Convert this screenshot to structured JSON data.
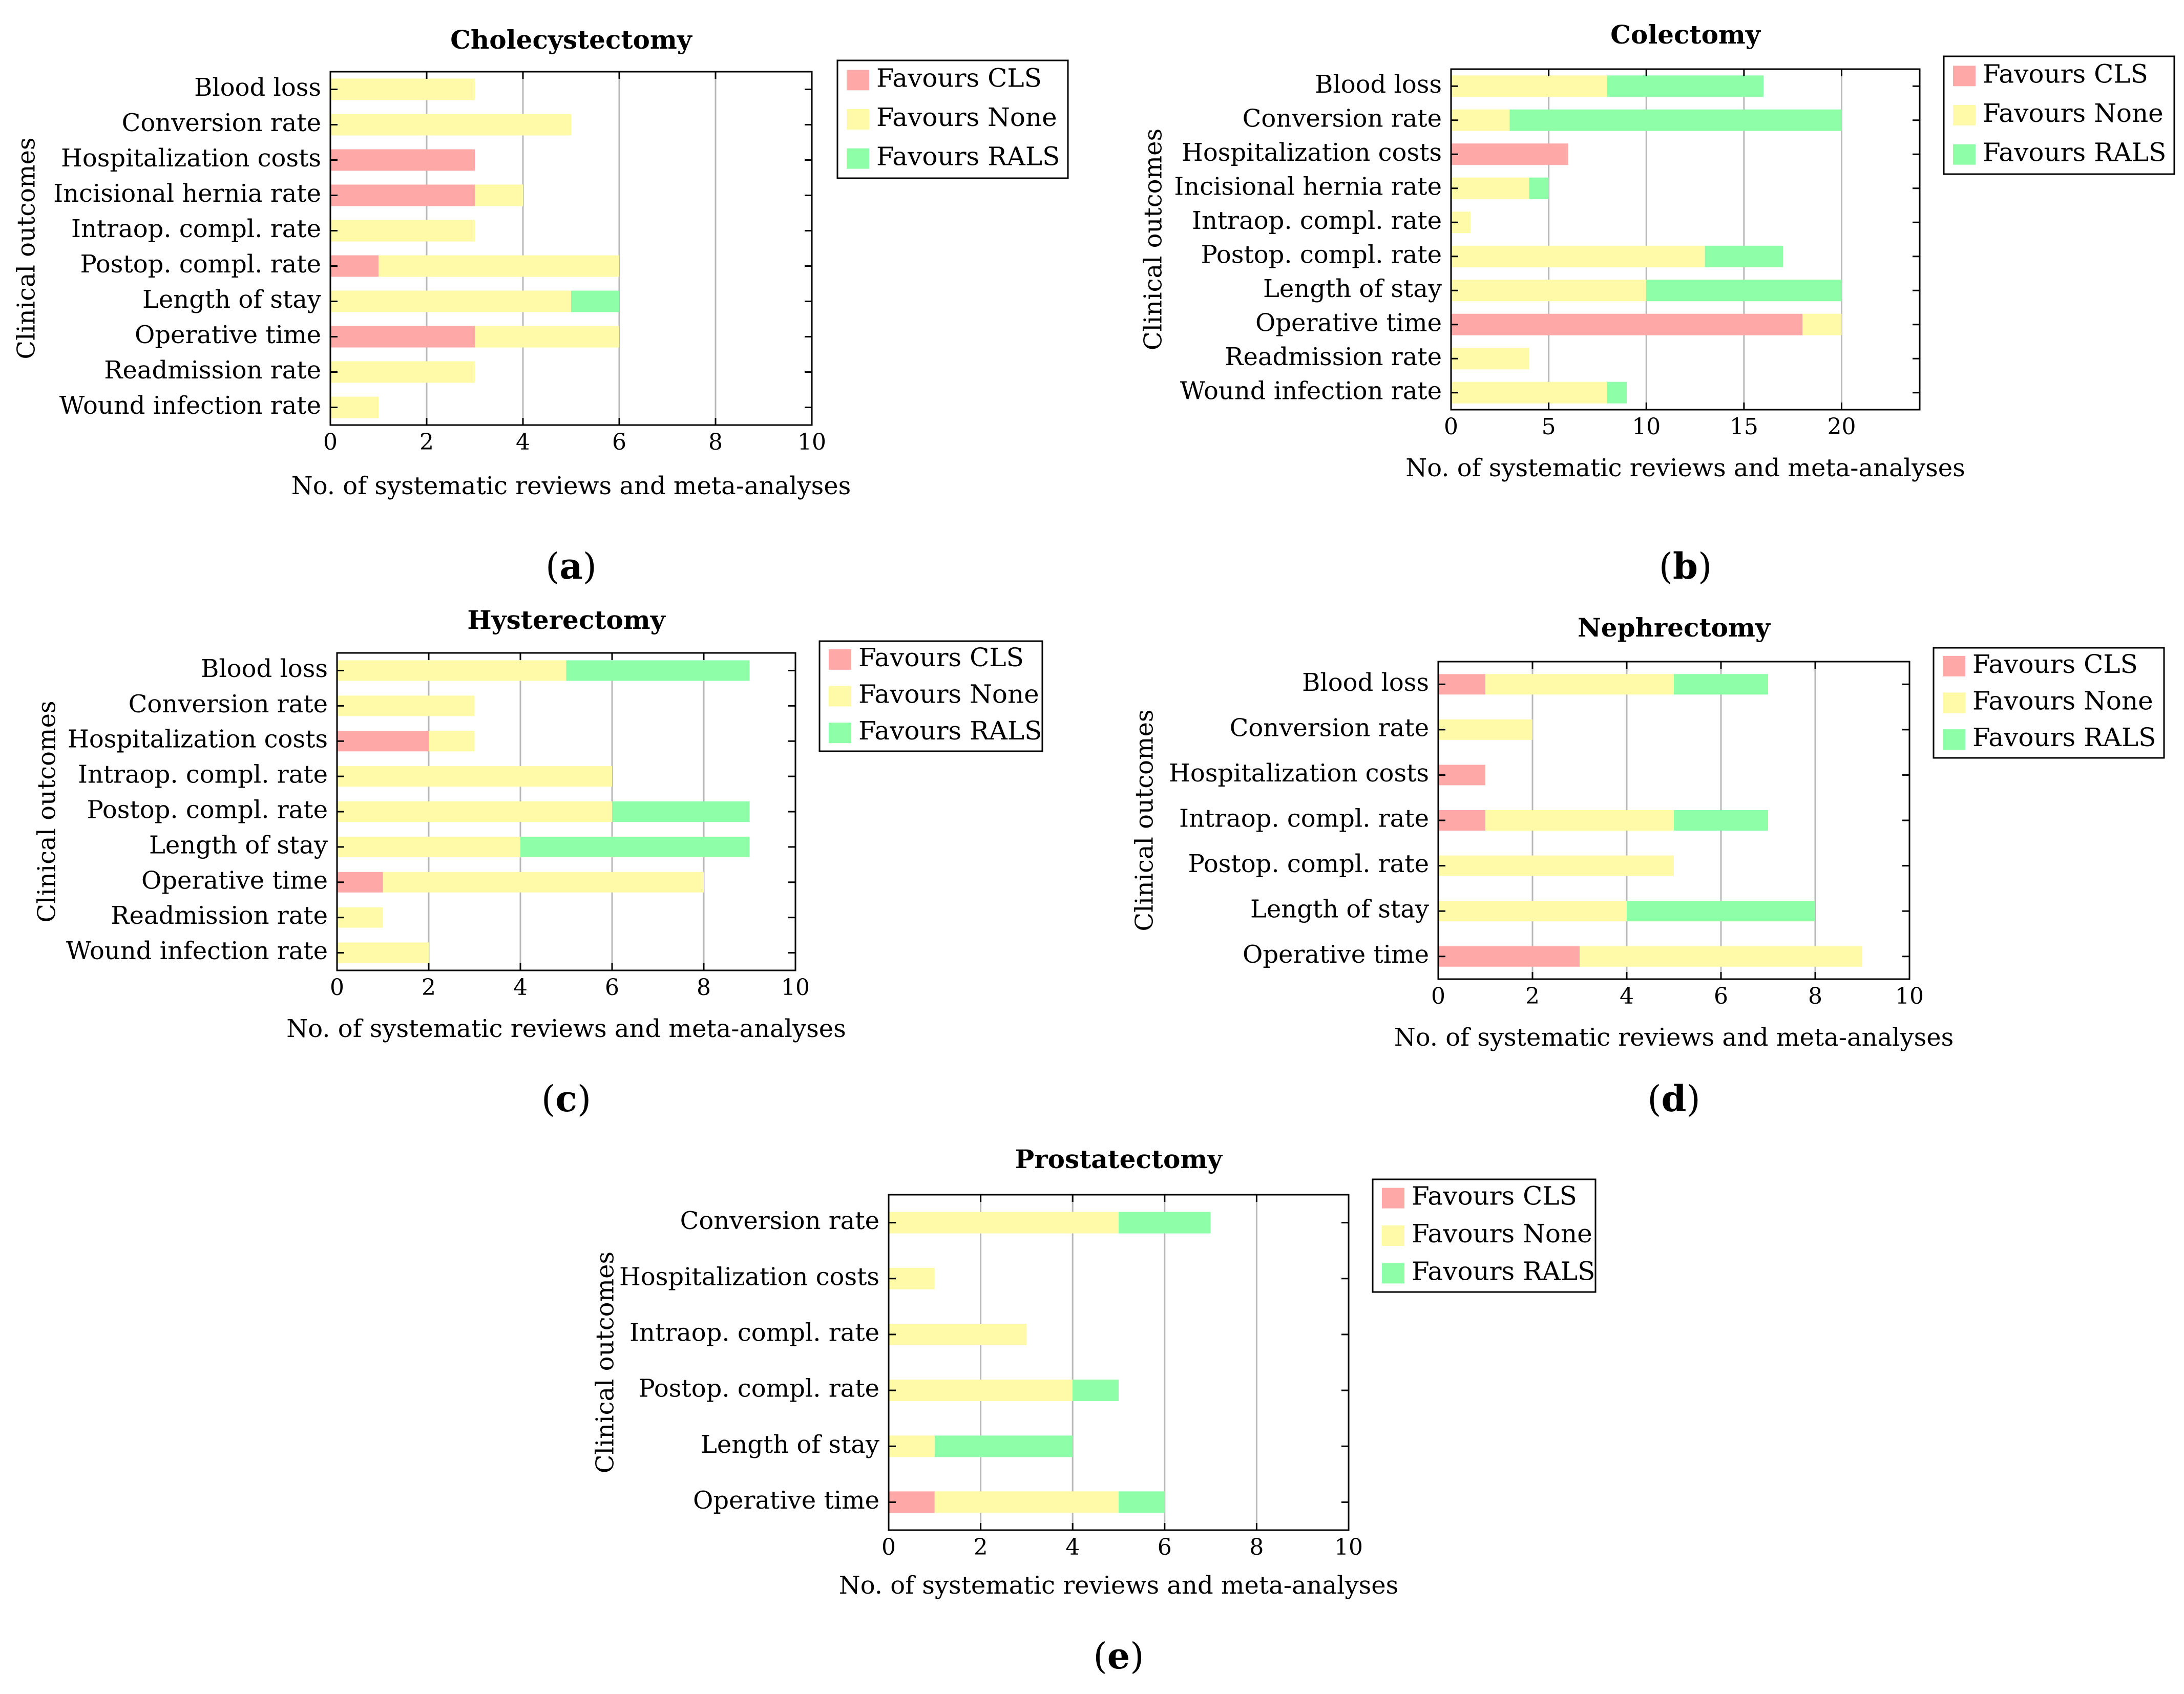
{
  "legend": [
    "Favours CLS",
    "Favours None",
    "Favours RALS"
  ],
  "colors": {
    "cls": "#ffa8a8",
    "none": "#fffaa8",
    "rals": "#8effa8",
    "grid": "#b8b8b8",
    "axis": "#000000"
  },
  "chart_data": [
    {
      "type": "bar",
      "stacked": true,
      "orientation": "horizontal",
      "panel": "a",
      "title": "Cholecystectomy",
      "xlabel": "No. of systematic reviews and meta-analyses",
      "ylabel": "Clinical outcomes",
      "xlim": [
        0,
        10
      ],
      "xticks": [
        0,
        2,
        4,
        6,
        8,
        10
      ],
      "categories": [
        "Blood loss",
        "Conversion rate",
        "Hospitalization costs",
        "Incisional hernia rate",
        "Intraop. compl. rate",
        "Postop. compl. rate",
        "Length of stay",
        "Operative time",
        "Readmission rate",
        "Wound infection rate"
      ],
      "series": [
        {
          "name": "Favours CLS",
          "values": [
            0,
            0,
            3,
            3,
            0,
            1,
            0,
            3,
            0,
            0
          ]
        },
        {
          "name": "Favours None",
          "values": [
            3,
            5,
            0,
            1,
            3,
            5,
            5,
            3,
            3,
            1
          ]
        },
        {
          "name": "Favours RALS",
          "values": [
            0,
            0,
            0,
            0,
            0,
            0,
            1,
            0,
            0,
            0
          ]
        }
      ],
      "legend_position": "top-right, outside"
    },
    {
      "type": "bar",
      "stacked": true,
      "orientation": "horizontal",
      "panel": "b",
      "title": "Colectomy",
      "xlabel": "No. of systematic reviews and meta-analyses",
      "ylabel": "Clinical outcomes",
      "xlim": [
        0,
        24
      ],
      "xticks": [
        0,
        5,
        10,
        15,
        20
      ],
      "categories": [
        "Blood loss",
        "Conversion rate",
        "Hospitalization costs",
        "Incisional hernia rate",
        "Intraop. compl. rate",
        "Postop. compl. rate",
        "Length of stay",
        "Operative time",
        "Readmission rate",
        "Wound infection rate"
      ],
      "series": [
        {
          "name": "Favours CLS",
          "values": [
            0,
            0,
            6,
            0,
            0,
            0,
            0,
            18,
            0,
            0
          ]
        },
        {
          "name": "Favours None",
          "values": [
            8,
            3,
            0,
            4,
            1,
            13,
            10,
            2,
            4,
            8
          ]
        },
        {
          "name": "Favours RALS",
          "values": [
            8,
            17,
            0,
            1,
            0,
            4,
            10,
            0,
            0,
            1
          ]
        }
      ],
      "legend_position": "top-right, outside"
    },
    {
      "type": "bar",
      "stacked": true,
      "orientation": "horizontal",
      "panel": "c",
      "title": "Hysterectomy",
      "xlabel": "No. of systematic reviews and meta-analyses",
      "ylabel": "Clinical outcomes",
      "xlim": [
        0,
        10
      ],
      "xticks": [
        0,
        2,
        4,
        6,
        8,
        10
      ],
      "categories": [
        "Blood loss",
        "Conversion rate",
        "Hospitalization costs",
        "Intraop. compl. rate",
        "Postop. compl. rate",
        "Length of stay",
        "Operative time",
        "Readmission rate",
        "Wound infection rate"
      ],
      "series": [
        {
          "name": "Favours CLS",
          "values": [
            0,
            0,
            2,
            0,
            0,
            0,
            1,
            0,
            0
          ]
        },
        {
          "name": "Favours None",
          "values": [
            5,
            3,
            1,
            6,
            6,
            4,
            7,
            1,
            2
          ]
        },
        {
          "name": "Favours RALS",
          "values": [
            4,
            0,
            0,
            0,
            3,
            5,
            0,
            0,
            0
          ]
        }
      ],
      "legend_position": "top-right, outside"
    },
    {
      "type": "bar",
      "stacked": true,
      "orientation": "horizontal",
      "panel": "d",
      "title": "Nephrectomy",
      "xlabel": "No. of systematic reviews and meta-analyses",
      "ylabel": "Clinical outcomes",
      "xlim": [
        0,
        10
      ],
      "xticks": [
        0,
        2,
        4,
        6,
        8,
        10
      ],
      "categories": [
        "Blood loss",
        "Conversion rate",
        "Hospitalization costs",
        "Intraop. compl. rate",
        "Postop. compl. rate",
        "Length of stay",
        "Operative time"
      ],
      "series": [
        {
          "name": "Favours CLS",
          "values": [
            1,
            0,
            1,
            1,
            0,
            0,
            3
          ]
        },
        {
          "name": "Favours None",
          "values": [
            4,
            2,
            0,
            4,
            5,
            4,
            6
          ]
        },
        {
          "name": "Favours RALS",
          "values": [
            2,
            0,
            0,
            2,
            0,
            4,
            0
          ]
        }
      ],
      "legend_position": "top-right, outside"
    },
    {
      "type": "bar",
      "stacked": true,
      "orientation": "horizontal",
      "panel": "e",
      "title": "Prostatectomy",
      "xlabel": "No. of systematic reviews and meta-analyses",
      "ylabel": "Clinical outcomes",
      "xlim": [
        0,
        10
      ],
      "xticks": [
        0,
        2,
        4,
        6,
        8,
        10
      ],
      "categories": [
        "Conversion rate",
        "Hospitalization costs",
        "Intraop. compl. rate",
        "Postop. compl. rate",
        "Length of stay",
        "Operative time"
      ],
      "series": [
        {
          "name": "Favours CLS",
          "values": [
            0,
            0,
            0,
            0,
            0,
            1
          ]
        },
        {
          "name": "Favours None",
          "values": [
            5,
            1,
            3,
            4,
            1,
            4
          ]
        },
        {
          "name": "Favours RALS",
          "values": [
            2,
            0,
            0,
            1,
            3,
            1
          ]
        }
      ],
      "legend_position": "top-right, outside"
    }
  ]
}
